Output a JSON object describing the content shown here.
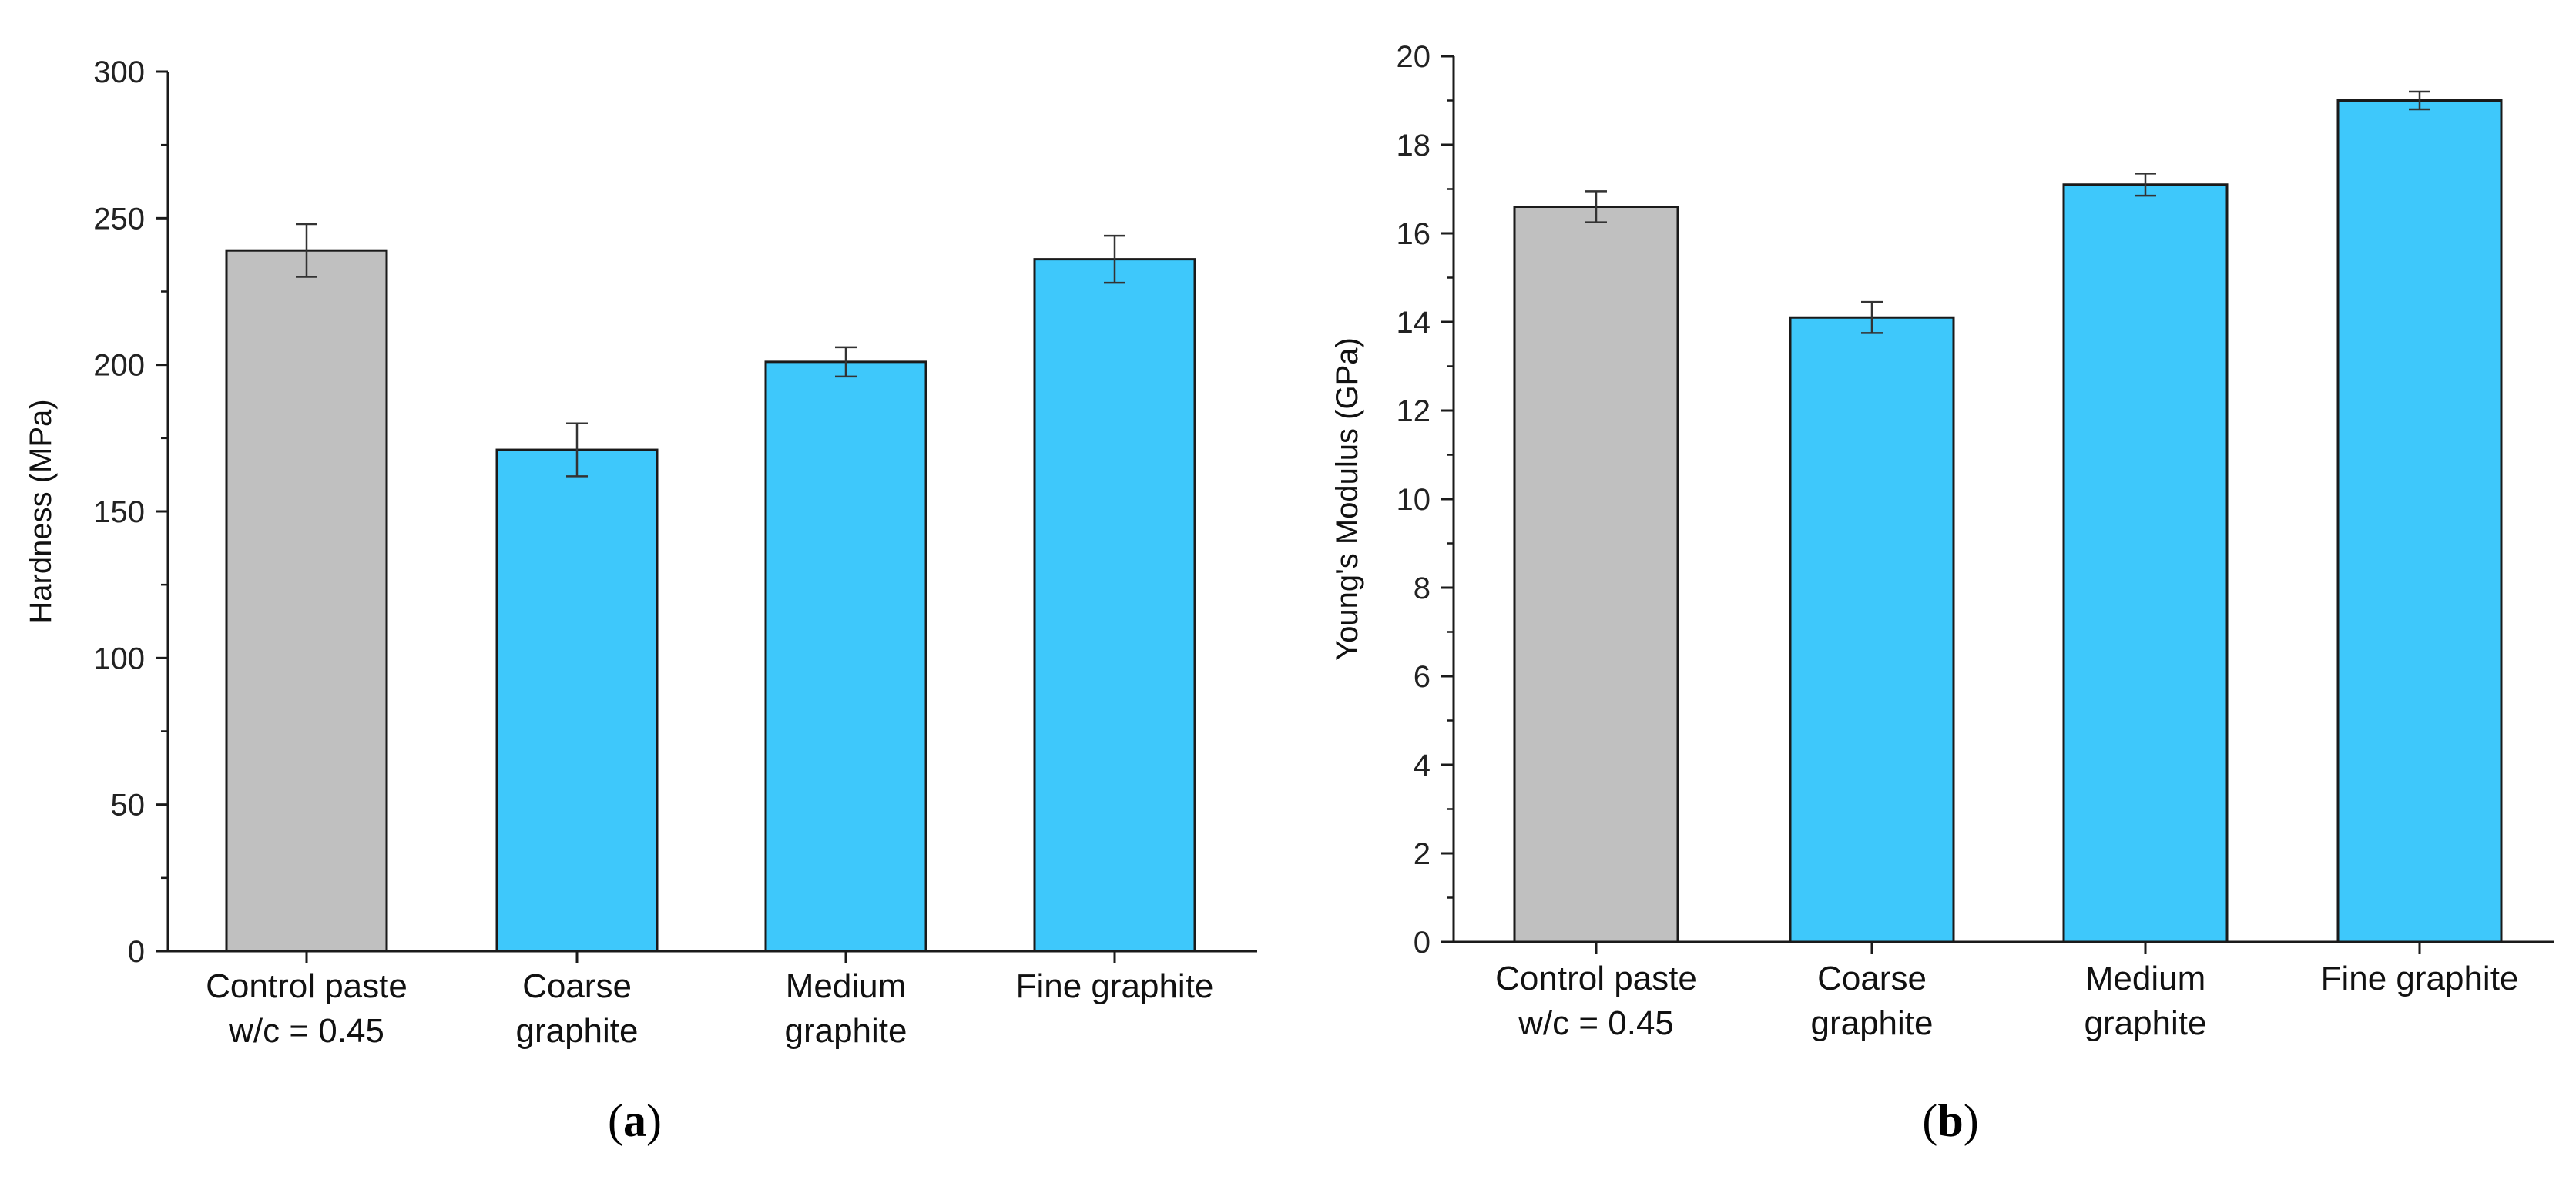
{
  "chart_data": [
    {
      "type": "bar",
      "panel": "a",
      "caption": "(a)",
      "ylabel": "Hardness (MPa)",
      "ylim": [
        0,
        300
      ],
      "yticks": [
        0,
        50,
        100,
        150,
        200,
        250,
        300
      ],
      "categories": [
        [
          "Control paste",
          "w/c = 0.45"
        ],
        [
          "Coarse",
          "graphite"
        ],
        [
          "Medium",
          "graphite"
        ],
        [
          "Fine graphite"
        ]
      ],
      "values": [
        239,
        171,
        201,
        236
      ],
      "errors": [
        9,
        9,
        5,
        8
      ],
      "bar_colors": [
        "#c0c0c0",
        "#3ec8fb",
        "#3ec8fb",
        "#3ec8fb"
      ]
    },
    {
      "type": "bar",
      "panel": "b",
      "caption": "(b)",
      "ylabel": "Young's Modulus (GPa)",
      "ylim": [
        0,
        20
      ],
      "yticks": [
        0,
        2,
        4,
        6,
        8,
        10,
        12,
        14,
        16,
        18,
        20
      ],
      "categories": [
        [
          "Control paste",
          "w/c = 0.45"
        ],
        [
          "Coarse",
          "graphite"
        ],
        [
          "Medium",
          "graphite"
        ],
        [
          "Fine graphite"
        ]
      ],
      "values": [
        16.6,
        14.1,
        17.1,
        19.0
      ],
      "errors": [
        0.35,
        0.35,
        0.25,
        0.2
      ],
      "bar_colors": [
        "#c0c0c0",
        "#3ec8fb",
        "#3ec8fb",
        "#3ec8fb"
      ]
    }
  ]
}
